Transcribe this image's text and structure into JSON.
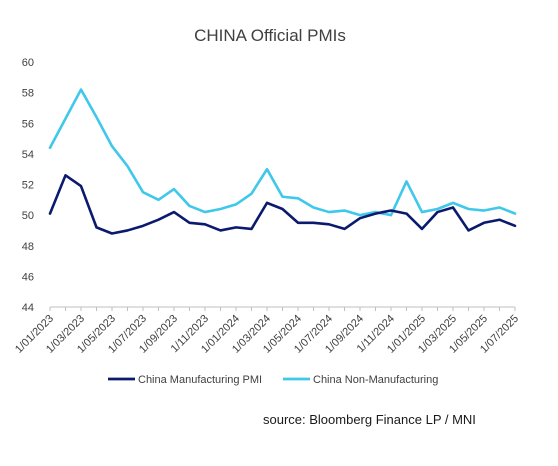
{
  "chart_data": {
    "type": "line",
    "title": "CHINA Official PMIs",
    "source": "source: Bloomberg Finance LP / MNI",
    "ylim": [
      44,
      60
    ],
    "yticks": [
      "44",
      "46",
      "48",
      "50",
      "52",
      "54",
      "56",
      "58",
      "60"
    ],
    "x_tick_labels": [
      "1/01/2023",
      "1/03/2023",
      "1/05/2023",
      "1/07/2023",
      "1/09/2023",
      "1/11/2023",
      "1/01/2024",
      "1/03/2024",
      "1/05/2024",
      "1/07/2024",
      "1/09/2024",
      "1/11/2024",
      "1/01/2025",
      "1/03/2025",
      "1/05/2025",
      "1/07/2025"
    ],
    "x": [
      "1/01/2023",
      "1/02/2023",
      "1/03/2023",
      "1/04/2023",
      "1/05/2023",
      "1/06/2023",
      "1/07/2023",
      "1/08/2023",
      "1/09/2023",
      "1/10/2023",
      "1/11/2023",
      "1/12/2023",
      "1/01/2024",
      "1/02/2024",
      "1/03/2024",
      "1/04/2024",
      "1/05/2024",
      "1/06/2024",
      "1/07/2024",
      "1/08/2024",
      "1/09/2024",
      "1/10/2024",
      "1/11/2024",
      "1/12/2024",
      "1/01/2025",
      "1/02/2025",
      "1/03/2025",
      "1/04/2025",
      "1/05/2025",
      "1/06/2025",
      "1/07/2025"
    ],
    "grid": false,
    "legend_position": "bottom",
    "series": [
      {
        "name": "China Manufacturing PMI",
        "color": "#0b1a6e",
        "values": [
          50.1,
          52.6,
          51.9,
          49.2,
          48.8,
          49.0,
          49.3,
          49.7,
          50.2,
          49.5,
          49.4,
          49.0,
          49.2,
          49.1,
          50.8,
          50.4,
          49.5,
          49.5,
          49.4,
          49.1,
          49.8,
          50.1,
          50.3,
          50.1,
          49.1,
          50.2,
          50.5,
          49.0,
          49.5,
          49.7,
          49.3
        ]
      },
      {
        "name": "China Non-Manufacturing",
        "color": "#3fc8ea",
        "values": [
          54.4,
          56.3,
          58.2,
          56.4,
          54.5,
          53.2,
          51.5,
          51.0,
          51.7,
          50.6,
          50.2,
          50.4,
          50.7,
          51.4,
          53.0,
          51.2,
          51.1,
          50.5,
          50.2,
          50.3,
          50.0,
          50.2,
          50.0,
          52.2,
          50.2,
          50.4,
          50.8,
          50.4,
          50.3,
          50.5,
          50.1
        ]
      }
    ]
  }
}
